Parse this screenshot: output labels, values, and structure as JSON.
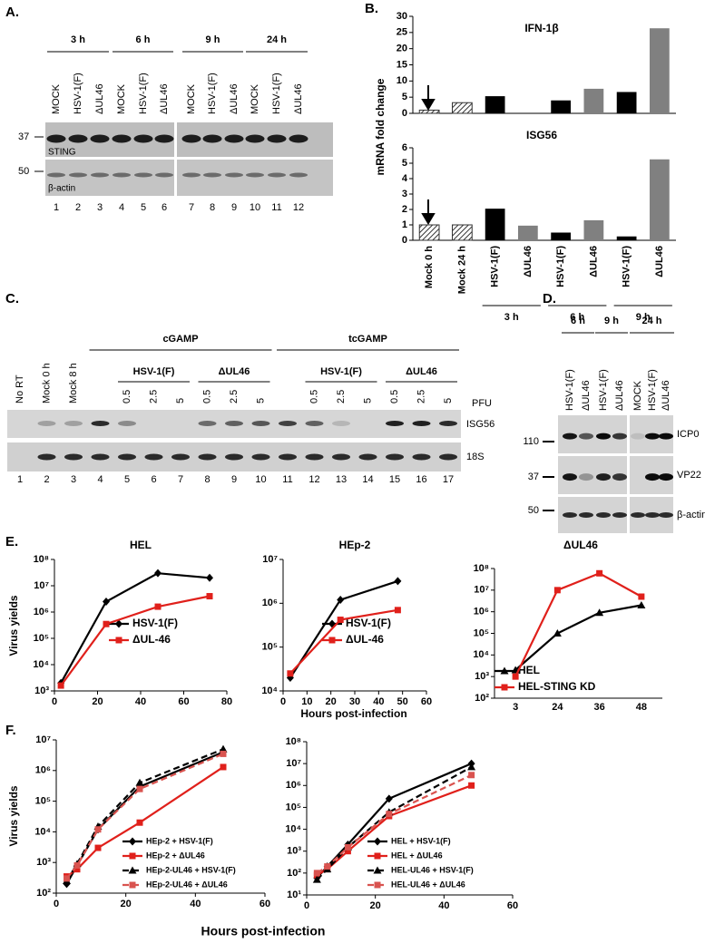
{
  "blot_A": {
    "label": "A.",
    "times": [
      "3 h",
      "6 h",
      "9 h",
      "24 h"
    ],
    "lanes": [
      "MOCK",
      "HSV-1(F)",
      "ΔUL46",
      "MOCK",
      "HSV-1(F)",
      "ΔUL46",
      "MOCK",
      "HSV-1(F)",
      "ΔUL46",
      "MOCK",
      "HSV-1(F)",
      "ΔUL46"
    ],
    "markers": [
      "37",
      "50"
    ],
    "proteins": [
      "STING",
      "β-actin"
    ],
    "lane_numbers": [
      "1",
      "2",
      "3",
      "4",
      "5",
      "6",
      "7",
      "8",
      "9",
      "10",
      "11",
      "12"
    ]
  },
  "panel_labels": {
    "B": "B.",
    "E": "E.",
    "F": "F."
  },
  "blot_C": {
    "label": "C.",
    "lanes": [
      "No RT",
      "Mock 0 h",
      "Mock 8 h"
    ],
    "treatments": [
      "cGAMP",
      "tcGAMP"
    ],
    "viruses": [
      "HSV-1(F)",
      "ΔUL46",
      "HSV-1(F)",
      "ΔUL46"
    ],
    "doses": [
      "0.5",
      "2.5",
      "5",
      "0.5",
      "2.5",
      "5",
      "0.5",
      "2.5",
      "5",
      "0.5",
      "2.5",
      "5"
    ],
    "dose_unit": "PFU",
    "proteins": [
      "ISG56",
      "18S"
    ],
    "lane_numbers": [
      "1",
      "2",
      "3",
      "4",
      "5",
      "6",
      "7",
      "8",
      "9",
      "10",
      "11",
      "12",
      "13",
      "14",
      "15",
      "16",
      "17"
    ]
  },
  "blot_D": {
    "label": "D.",
    "times": [
      "6 h",
      "9 h",
      "24 h"
    ],
    "lanes": [
      "HSV-1(F)",
      "ΔUL46",
      "HSV-1(F)",
      "ΔUL46",
      "MOCK",
      "HSV-1(F)",
      "ΔUL46"
    ],
    "markers": [
      "110",
      "37",
      "50"
    ],
    "proteins": [
      "ICP0",
      "VP22",
      "β-actin"
    ]
  },
  "chart_data": [
    {
      "type": "bar",
      "title": "IFN-1β",
      "ylabel": "mRNA fold change",
      "values": [
        1,
        3.3,
        5.3,
        0,
        4,
        7.6,
        6.6,
        26.3
      ],
      "colors": [
        "#444444",
        "#444444",
        "#000000",
        "#808080",
        "#000000",
        "#808080",
        "#000000",
        "#808080"
      ],
      "hatched": [
        true,
        true,
        false,
        false,
        false,
        false,
        false,
        false
      ],
      "ylim": [
        0,
        30
      ],
      "yticks": [
        0,
        5,
        10,
        15,
        20,
        25,
        30
      ]
    },
    {
      "type": "bar",
      "title": "ISG56",
      "categories": [
        "Mock 0 h",
        "Mock 24 h",
        "HSV-1(F)",
        "ΔUL46",
        "HSV-1(F)",
        "ΔUL46",
        "HSV-1(F)",
        "ΔUL46"
      ],
      "groups": [
        "3 h",
        "6 h",
        "9 h"
      ],
      "values": [
        1,
        1,
        2.05,
        0.95,
        0.5,
        1.3,
        0.25,
        5.25
      ],
      "colors": [
        "#444444",
        "#444444",
        "#000000",
        "#808080",
        "#000000",
        "#808080",
        "#000000",
        "#808080"
      ],
      "hatched": [
        true,
        true,
        false,
        false,
        false,
        false,
        false,
        false
      ],
      "ylim": [
        0,
        6
      ],
      "yticks": [
        0,
        1,
        2,
        3,
        4,
        5,
        6
      ]
    },
    {
      "type": "line",
      "title": "HEL",
      "ylabel": "Virus yields",
      "log_y": true,
      "x": [
        3,
        24,
        48,
        72
      ],
      "series": [
        {
          "name": "HSV-1(F)",
          "color": "#000000",
          "marker": "diamond",
          "values": [
            2000,
            2500000,
            30000000,
            20000000
          ]
        },
        {
          "name": "ΔUL-46",
          "color": "#e0201b",
          "marker": "square",
          "values": [
            1600,
            350000,
            1600000,
            4000000
          ]
        }
      ],
      "xlim": [
        0,
        80
      ],
      "xticks": [
        0,
        20,
        40,
        60,
        80
      ],
      "ylim": [
        1000,
        100000000
      ],
      "yticks": [
        {
          "value": 1000,
          "label": "10³"
        },
        {
          "value": 10000,
          "label": "10⁴"
        },
        {
          "value": 100000,
          "label": "10⁵"
        },
        {
          "value": 1000000,
          "label": "10⁶"
        },
        {
          "value": 10000000,
          "label": "10⁷"
        },
        {
          "value": 100000000,
          "label": "10⁸"
        }
      ]
    },
    {
      "type": "line",
      "title": "HEp-2",
      "xlabel": "Hours post-infection",
      "log_y": true,
      "x": [
        3,
        24,
        48
      ],
      "series": [
        {
          "name": "HSV-1(F)",
          "color": "#000000",
          "marker": "diamond",
          "values": [
            20000,
            1200000,
            3200000
          ]
        },
        {
          "name": "ΔUL-46",
          "color": "#e0201b",
          "marker": "square",
          "values": [
            25000,
            420000,
            700000
          ]
        }
      ],
      "xlim": [
        0,
        60
      ],
      "xticks": [
        0,
        10,
        20,
        30,
        40,
        50,
        60
      ],
      "ylim": [
        10000,
        10000000
      ],
      "yticks": [
        {
          "value": 10000,
          "label": "10⁴"
        },
        {
          "value": 100000,
          "label": "10⁵"
        },
        {
          "value": 1000000,
          "label": "10⁶"
        },
        {
          "value": 10000000,
          "label": "10⁷"
        }
      ]
    },
    {
      "type": "line",
      "title": "ΔUL46",
      "log_y": true,
      "categories": [
        "3",
        "24",
        "36",
        "48"
      ],
      "series": [
        {
          "name": "HEL",
          "color": "#000000",
          "marker": "triangle",
          "values": [
            2000,
            100000,
            900000,
            2000000
          ]
        },
        {
          "name": "HEL-STING KD",
          "color": "#e0201b",
          "marker": "square",
          "values": [
            1000,
            10000000,
            60000000,
            5000000
          ]
        }
      ],
      "ylim": [
        100,
        100000000
      ],
      "yticks": [
        {
          "value": 100,
          "label": "10²"
        },
        {
          "value": 1000,
          "label": "10³"
        },
        {
          "value": 10000,
          "label": "10⁴"
        },
        {
          "value": 100000,
          "label": "10⁵"
        },
        {
          "value": 1000000,
          "label": "10⁶"
        },
        {
          "value": 10000000,
          "label": "10⁷"
        },
        {
          "value": 100000000,
          "label": "10⁸"
        }
      ]
    },
    {
      "type": "line",
      "ylabel": "Virus yields",
      "xlabel": "Hours post-infection",
      "log_y": true,
      "x": [
        3,
        6,
        12,
        24,
        48
      ],
      "series": [
        {
          "name": "HEp-2 + HSV-1(F)",
          "color": "#000000",
          "marker": "diamond",
          "dashed": false,
          "values": [
            200,
            800,
            12000,
            300000,
            4000000
          ]
        },
        {
          "name": "HEp-2 + ΔUL46",
          "color": "#e0201b",
          "marker": "square",
          "dashed": false,
          "values": [
            350,
            600,
            3000,
            20000,
            1300000
          ]
        },
        {
          "name": "HEp-2-UL46 + HSV-1(F)",
          "color": "#000000",
          "marker": "triangle",
          "dashed": true,
          "values": [
            250,
            900,
            15000,
            400000,
            5000000
          ]
        },
        {
          "name": "HEp-2-UL46 + ΔUL46",
          "color": "#d9534f",
          "marker": "square",
          "dashed": true,
          "values": [
            300,
            800,
            12000,
            250000,
            3500000
          ]
        }
      ],
      "xlim": [
        0,
        60
      ],
      "xticks": [
        0,
        20,
        40,
        60
      ],
      "ylim": [
        100,
        10000000
      ],
      "yticks": [
        {
          "value": 100,
          "label": "10²"
        },
        {
          "value": 1000,
          "label": "10³"
        },
        {
          "value": 10000,
          "label": "10⁴"
        },
        {
          "value": 100000,
          "label": "10⁵"
        },
        {
          "value": 1000000,
          "label": "10⁶"
        },
        {
          "value": 10000000,
          "label": "10⁷"
        }
      ]
    },
    {
      "type": "line",
      "log_y": true,
      "x": [
        3,
        6,
        12,
        24,
        48
      ],
      "series": [
        {
          "name": "HEL + HSV-1(F)",
          "color": "#000000",
          "marker": "diamond",
          "dashed": false,
          "values": [
            60,
            200,
            2000,
            250000,
            10000000
          ]
        },
        {
          "name": "HEL + ΔUL46",
          "color": "#e0201b",
          "marker": "square",
          "dashed": false,
          "values": [
            80,
            150,
            1000,
            40000,
            1000000
          ]
        },
        {
          "name": "HEL-UL46 + HSV-1(F)",
          "color": "#000000",
          "marker": "triangle",
          "dashed": true,
          "values": [
            50,
            150,
            1500,
            60000,
            7000000
          ]
        },
        {
          "name": "HEL-UL46 + ΔUL46",
          "color": "#d9534f",
          "marker": "square",
          "dashed": true,
          "values": [
            100,
            200,
            1500,
            50000,
            3000000
          ]
        }
      ],
      "xlim": [
        0,
        60
      ],
      "xticks": [
        0,
        20,
        40,
        60
      ],
      "ylim": [
        10,
        100000000
      ],
      "yticks": [
        {
          "value": 10,
          "label": "10¹"
        },
        {
          "value": 100,
          "label": "10²"
        },
        {
          "value": 1000,
          "label": "10³"
        },
        {
          "value": 10000,
          "label": "10⁴"
        },
        {
          "value": 100000,
          "label": "10⁵"
        },
        {
          "value": 1000000,
          "label": "10⁶"
        },
        {
          "value": 10000000,
          "label": "10⁷"
        },
        {
          "value": 100000000,
          "label": "10⁸"
        }
      ]
    }
  ]
}
